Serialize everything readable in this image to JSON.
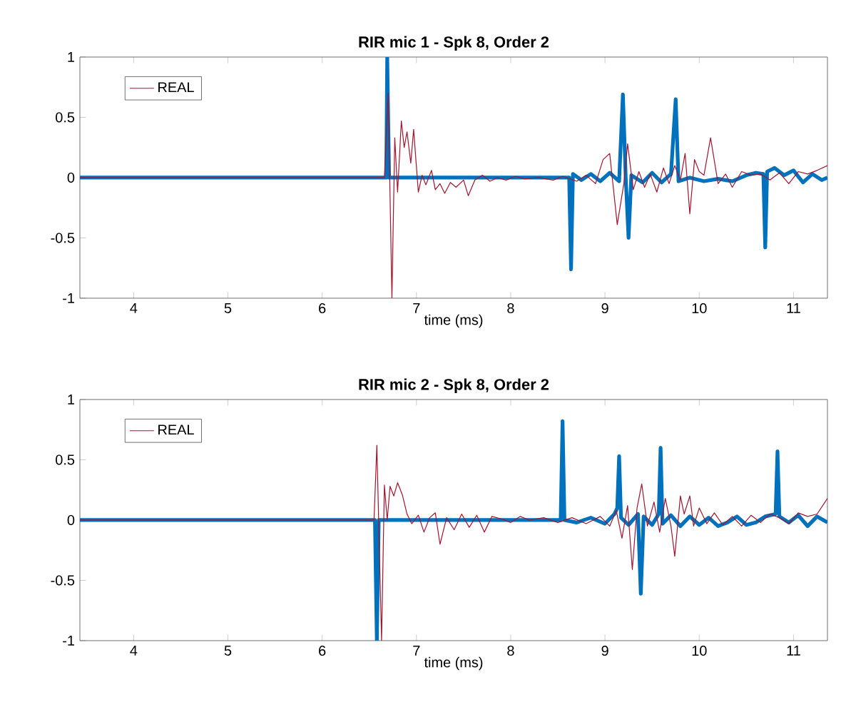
{
  "chart_data": [
    {
      "type": "line",
      "title": "RIR mic 1 - Spk 8, Order 2",
      "xlabel": "time (ms)",
      "xlim": [
        3.43,
        11.36
      ],
      "ylim": [
        -1,
        1
      ],
      "xticks": [
        4,
        5,
        6,
        7,
        8,
        9,
        10,
        11
      ],
      "yticks": [
        -1,
        -0.5,
        0,
        0.5,
        1
      ],
      "legend": "top left",
      "grid": false,
      "series": [
        {
          "color": "#0072bd",
          "x": [
            3.43,
            6.68,
            6.69,
            6.71,
            8.62,
            8.64,
            8.66,
            8.75,
            8.85,
            8.95,
            9.05,
            9.15,
            9.19,
            9.22,
            9.25,
            9.28,
            9.4,
            9.5,
            9.6,
            9.7,
            9.75,
            9.78,
            9.9,
            10.05,
            10.2,
            10.35,
            10.5,
            10.6,
            10.68,
            10.7,
            10.72,
            10.8,
            10.9,
            11.0,
            11.1,
            11.2,
            11.3,
            11.36
          ],
          "values": [
            0,
            0,
            1,
            0,
            0,
            -0.76,
            0.03,
            -0.02,
            0.03,
            -0.03,
            0.04,
            -0.03,
            0.69,
            0,
            -0.5,
            0.02,
            -0.04,
            0.04,
            -0.04,
            0.03,
            0.65,
            -0.03,
            0,
            -0.03,
            -0.01,
            -0.03,
            0.02,
            0.04,
            0.03,
            -0.58,
            0.05,
            0.08,
            0.02,
            0.06,
            -0.04,
            0.03,
            -0.02,
            0
          ]
        },
        {
          "name": "REAL",
          "color": "#a2142f",
          "x": [
            3.43,
            6.66,
            6.7,
            6.74,
            6.77,
            6.8,
            6.84,
            6.87,
            6.9,
            6.94,
            6.97,
            7.02,
            7.06,
            7.1,
            7.16,
            7.2,
            7.25,
            7.3,
            7.36,
            7.42,
            7.5,
            7.55,
            7.62,
            7.7,
            7.78,
            7.86,
            7.95,
            8.05,
            8.15,
            8.3,
            8.45,
            8.55,
            8.7,
            8.8,
            8.9,
            8.98,
            9.05,
            9.13,
            9.2,
            9.24,
            9.3,
            9.36,
            9.42,
            9.48,
            9.55,
            9.62,
            9.68,
            9.74,
            9.8,
            9.85,
            9.9,
            9.95,
            10.0,
            10.05,
            10.12,
            10.2,
            10.28,
            10.35,
            10.45,
            10.55,
            10.65,
            10.75,
            10.85,
            10.95,
            11.05,
            11.15,
            11.25,
            11.36
          ],
          "values": [
            0,
            0,
            0.7,
            -1,
            0.33,
            -0.12,
            0.47,
            0.25,
            0.38,
            0.12,
            0.4,
            -0.12,
            0.02,
            -0.06,
            0.06,
            -0.1,
            -0.05,
            -0.13,
            -0.04,
            -0.08,
            -0.02,
            -0.15,
            -0.02,
            0.02,
            -0.03,
            0,
            -0.02,
            0.01,
            -0.01,
            0,
            -0.02,
            0.01,
            -0.03,
            0.02,
            -0.05,
            0.15,
            0.2,
            -0.39,
            -0.05,
            0.28,
            -0.1,
            0.05,
            -0.08,
            0.03,
            -0.12,
            0.08,
            -0.05,
            0.1,
            -0.02,
            0.2,
            -0.3,
            0.15,
            0.05,
            0.02,
            0.33,
            -0.05,
            0.03,
            -0.08,
            0.05,
            0.02,
            0.03,
            -0.02,
            0.04,
            -0.05,
            0.05,
            0.03,
            0.06,
            0.1
          ]
        }
      ]
    },
    {
      "type": "line",
      "title": "RIR mic 2 - Spk 8, Order 2",
      "xlabel": "time (ms)",
      "xlim": [
        3.43,
        11.36
      ],
      "ylim": [
        -1,
        1
      ],
      "xticks": [
        4,
        5,
        6,
        7,
        8,
        9,
        10,
        11
      ],
      "yticks": [
        -1,
        -0.5,
        0,
        0.5,
        1
      ],
      "legend": "top left",
      "grid": false,
      "series": [
        {
          "color": "#0072bd",
          "x": [
            3.43,
            6.56,
            6.58,
            6.6,
            8.53,
            8.55,
            8.57,
            8.7,
            8.85,
            9.0,
            9.1,
            9.13,
            9.15,
            9.17,
            9.25,
            9.35,
            9.38,
            9.41,
            9.5,
            9.57,
            9.59,
            9.61,
            9.7,
            9.8,
            9.9,
            10.0,
            10.1,
            10.2,
            10.3,
            10.4,
            10.5,
            10.6,
            10.7,
            10.81,
            10.83,
            10.85,
            10.95,
            11.05,
            11.15,
            11.25,
            11.36
          ],
          "values": [
            0,
            0,
            -1,
            0,
            0,
            0.82,
            0,
            -0.02,
            0.02,
            -0.03,
            0.05,
            0.1,
            0.53,
            0.02,
            -0.04,
            0.05,
            -0.61,
            0.03,
            -0.04,
            0.05,
            0.6,
            -0.03,
            0.04,
            -0.05,
            0.03,
            -0.04,
            0.02,
            -0.05,
            -0.02,
            0.03,
            -0.04,
            -0.02,
            0.03,
            0.05,
            0.57,
            0.03,
            -0.02,
            0.04,
            -0.05,
            0.03,
            -0.02
          ]
        },
        {
          "name": "REAL",
          "color": "#a2142f",
          "x": [
            3.43,
            6.55,
            6.58,
            6.63,
            6.66,
            6.69,
            6.72,
            6.76,
            6.8,
            6.85,
            6.9,
            6.95,
            7.02,
            7.08,
            7.14,
            7.2,
            7.25,
            7.32,
            7.4,
            7.48,
            7.56,
            7.64,
            7.72,
            7.8,
            7.9,
            8.0,
            8.1,
            8.2,
            8.35,
            8.5,
            8.65,
            8.8,
            8.95,
            9.05,
            9.12,
            9.18,
            9.24,
            9.29,
            9.34,
            9.39,
            9.45,
            9.52,
            9.58,
            9.64,
            9.7,
            9.74,
            9.8,
            9.84,
            9.9,
            9.94,
            10.0,
            10.08,
            10.16,
            10.25,
            10.35,
            10.45,
            10.55,
            10.65,
            10.75,
            10.85,
            10.95,
            11.05,
            11.15,
            11.25,
            11.36
          ],
          "values": [
            0,
            0,
            0.62,
            -1,
            0.29,
            0,
            0.28,
            0.2,
            0.31,
            0.21,
            0.05,
            -0.03,
            0.04,
            -0.1,
            0.02,
            0.06,
            -0.2,
            0.02,
            -0.08,
            0.05,
            -0.06,
            0.04,
            -0.1,
            0.03,
            0.01,
            -0.02,
            0.03,
            0,
            0.02,
            -0.02,
            0.02,
            -0.03,
            0.03,
            -0.05,
            0.08,
            -0.15,
            0.12,
            -0.41,
            0.1,
            0.3,
            -0.05,
            0.15,
            -0.1,
            0.18,
            -0.05,
            -0.3,
            0.2,
            0.05,
            0.2,
            -0.05,
            0.1,
            -0.03,
            0.06,
            -0.04,
            0.03,
            -0.05,
            0.04,
            -0.02,
            0.05,
            0.02,
            -0.03,
            0.06,
            0.03,
            0.05,
            0.18
          ]
        }
      ]
    }
  ]
}
